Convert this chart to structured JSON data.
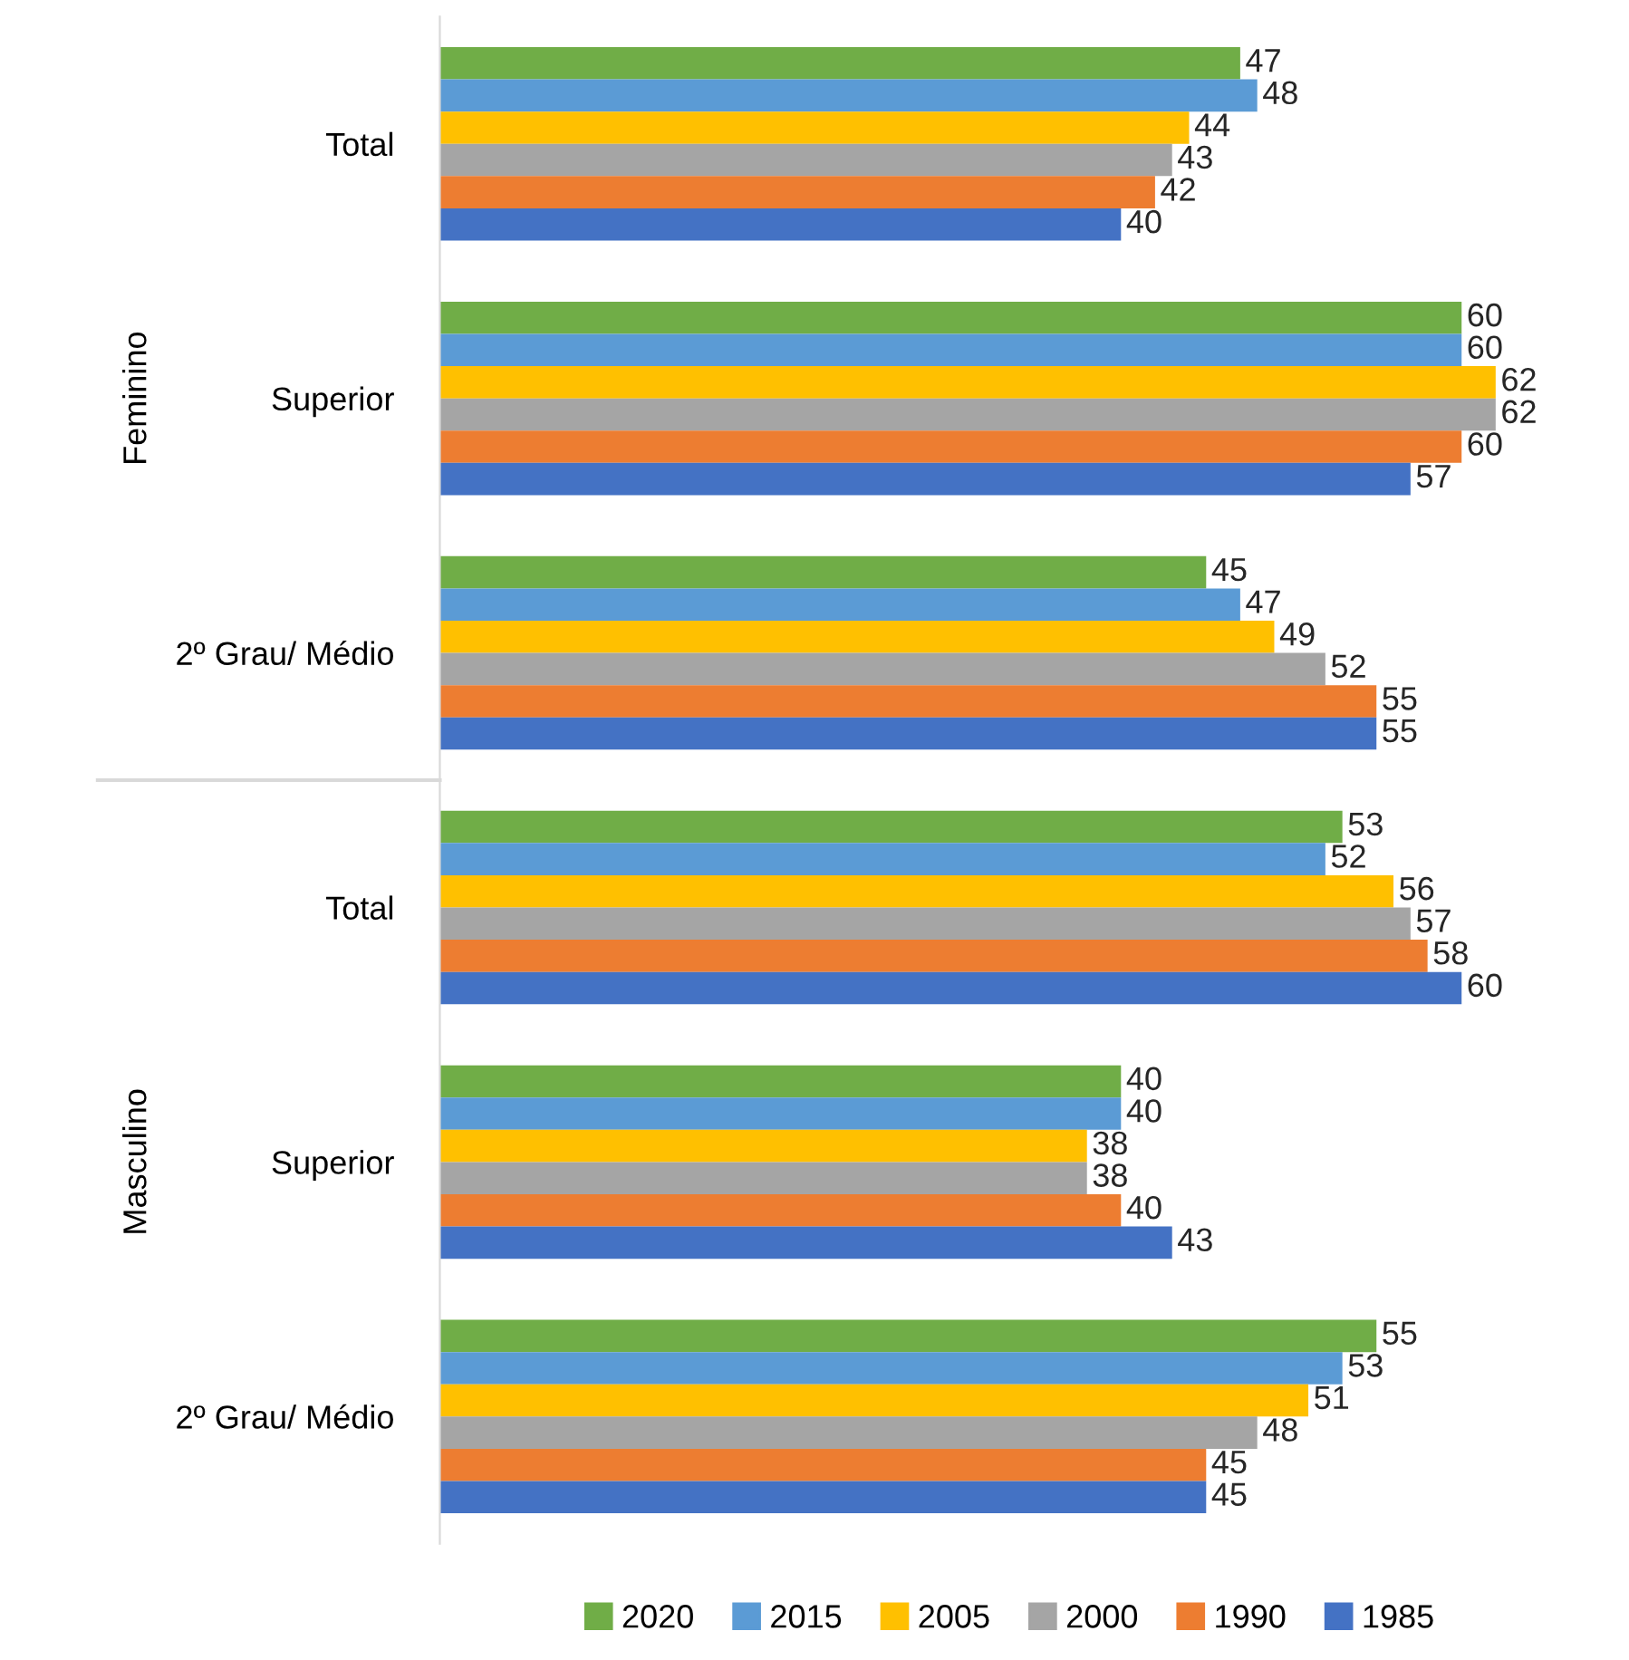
{
  "chart_data": {
    "type": "bar",
    "orientation": "horizontal",
    "categories": [
      "Total",
      "Superior",
      "2º Grau/ Médio",
      "Total",
      "Superior",
      "2º Grau/ Médio"
    ],
    "annotations": [
      "Feminino",
      "Masculino"
    ],
    "series": [
      {
        "name": "2020",
        "color": "#70ad47",
        "values": [
          47,
          60,
          45,
          53,
          40,
          55
        ]
      },
      {
        "name": "2015",
        "color": "#5b9bd5",
        "values": [
          48,
          60,
          47,
          52,
          40,
          53
        ]
      },
      {
        "name": "2005",
        "color": "#ffc000",
        "values": [
          44,
          62,
          49,
          56,
          38,
          51
        ]
      },
      {
        "name": "2000",
        "color": "#a5a5a5",
        "values": [
          43,
          62,
          52,
          57,
          38,
          48
        ]
      },
      {
        "name": "1990",
        "color": "#ed7d31",
        "values": [
          42,
          60,
          55,
          58,
          40,
          45
        ]
      },
      {
        "name": "1985",
        "color": "#4472c4",
        "values": [
          40,
          57,
          55,
          60,
          43,
          45
        ]
      }
    ],
    "data_labels": true,
    "legend": "bottom",
    "grid": false
  }
}
